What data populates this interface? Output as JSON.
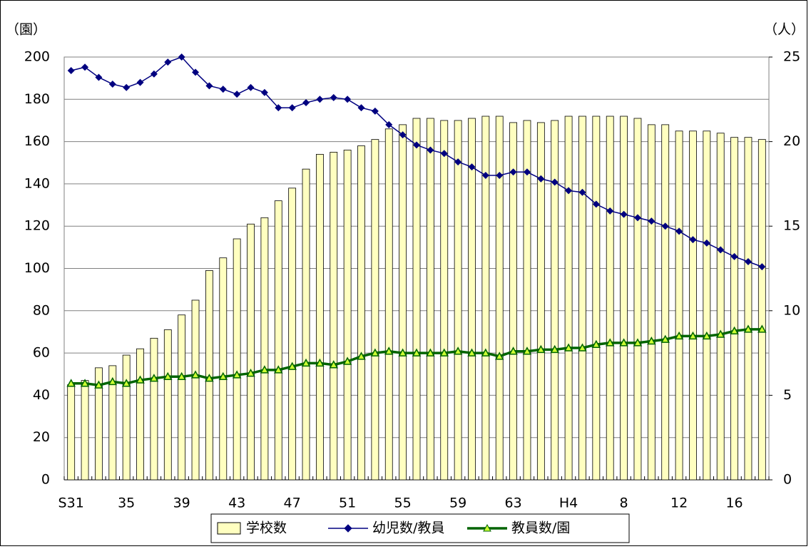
{
  "chart_data": {
    "type": "combo",
    "y_unit_label": "（園）",
    "y2_unit_label": "（人）",
    "categories": [
      "S31",
      null,
      null,
      null,
      "35",
      null,
      null,
      null,
      "39",
      null,
      null,
      null,
      "43",
      null,
      null,
      null,
      "47",
      null,
      null,
      null,
      "51",
      null,
      null,
      null,
      "55",
      null,
      null,
      null,
      "59",
      null,
      null,
      null,
      "63",
      null,
      null,
      null,
      "H4",
      null,
      null,
      null,
      "8",
      null,
      null,
      null,
      "12",
      null,
      null,
      null,
      "16",
      null,
      null
    ],
    "ylim": [
      0,
      200
    ],
    "yticks": [
      0,
      20,
      40,
      60,
      80,
      100,
      120,
      140,
      160,
      180,
      200
    ],
    "y2lim": [
      0,
      25
    ],
    "y2ticks": [
      0,
      5,
      10,
      15,
      20,
      25
    ],
    "grid": true,
    "series": [
      {
        "name": "学校数",
        "type": "bar",
        "color": "#ffffc0",
        "values": [
          45,
          47,
          53,
          54,
          59,
          62,
          67,
          71,
          78,
          85,
          99,
          105,
          114,
          121,
          124,
          132,
          138,
          147,
          154,
          155,
          156,
          158,
          161,
          166,
          168,
          171,
          171,
          170,
          170,
          171,
          172,
          172,
          169,
          170,
          169,
          170,
          172,
          172,
          172,
          172,
          172,
          171,
          168,
          168,
          165,
          165,
          165,
          164,
          162,
          162,
          161
        ]
      },
      {
        "name": "幼児数/教員",
        "type": "line",
        "axis": "y2",
        "color": "#000080",
        "marker": "diamond",
        "values": [
          24.2,
          24.4,
          23.8,
          23.4,
          23.2,
          23.5,
          24.0,
          24.7,
          25.0,
          24.1,
          23.3,
          23.1,
          22.8,
          23.2,
          22.9,
          22.0,
          22.0,
          22.3,
          22.5,
          22.6,
          22.5,
          22.0,
          21.8,
          21.0,
          20.4,
          19.8,
          19.5,
          19.3,
          18.8,
          18.5,
          18.0,
          18.0,
          18.2,
          18.2,
          17.8,
          17.6,
          17.1,
          17.0,
          16.3,
          15.9,
          15.7,
          15.5,
          15.3,
          15.0,
          14.7,
          14.2,
          14.0,
          13.6,
          13.2,
          12.9,
          12.6
        ]
      },
      {
        "name": "教員数/園",
        "type": "line",
        "axis": "y2",
        "color": "#006400",
        "marker": "triangle",
        "values": [
          5.7,
          5.7,
          5.6,
          5.8,
          5.7,
          5.9,
          6.0,
          6.1,
          6.1,
          6.2,
          6.0,
          6.1,
          6.2,
          6.3,
          6.5,
          6.5,
          6.7,
          6.9,
          6.9,
          6.8,
          7.0,
          7.3,
          7.5,
          7.6,
          7.5,
          7.5,
          7.5,
          7.5,
          7.6,
          7.5,
          7.5,
          7.3,
          7.6,
          7.6,
          7.7,
          7.7,
          7.8,
          7.8,
          8.0,
          8.1,
          8.1,
          8.1,
          8.2,
          8.3,
          8.5,
          8.5,
          8.5,
          8.6,
          8.8,
          8.9,
          8.9
        ]
      }
    ]
  }
}
